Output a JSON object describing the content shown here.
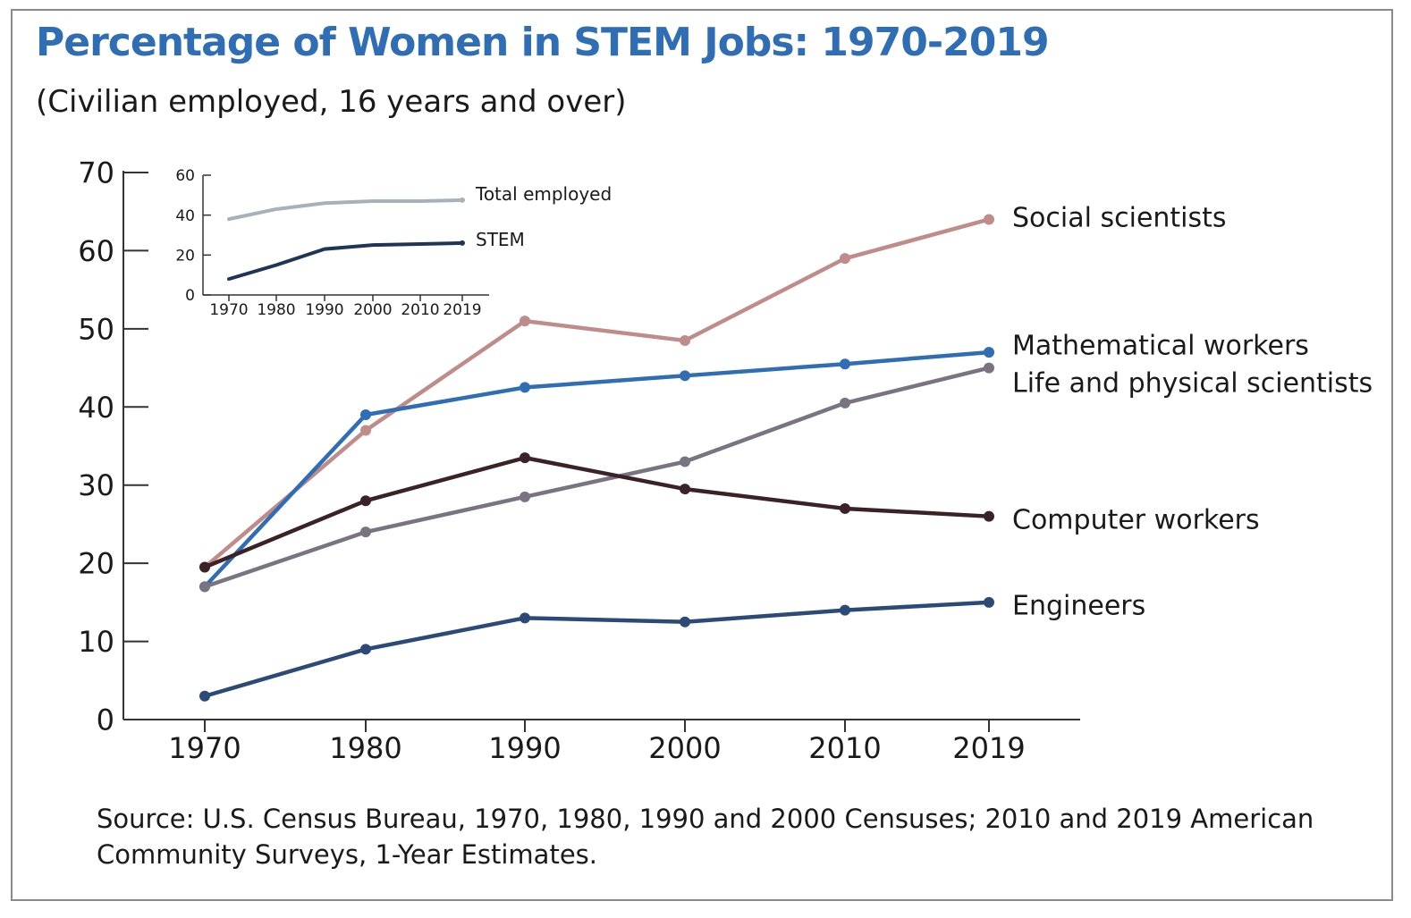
{
  "title": "Percentage of Women in STEM Jobs: 1970-2019",
  "subtitle": "(Civilian employed, 16 years and over)",
  "source": "Source: U.S. Census Bureau, 1970, 1980, 1990 and 2000 Censuses; 2010 and 2019 American Community Surveys, 1-Year Estimates.",
  "chart_data": [
    {
      "type": "line",
      "title": "Percentage of Women in STEM Jobs: 1970-2019",
      "subtitle": "(Civilian employed, 16 years and over)",
      "x": [
        "1970",
        "1980",
        "1990",
        "2000",
        "2010",
        "2019"
      ],
      "x_positions": [
        1970,
        1980,
        1990,
        2000,
        2010,
        2019
      ],
      "ylim": [
        0,
        70
      ],
      "yticks": [
        0,
        10,
        20,
        30,
        40,
        50,
        60,
        70
      ],
      "grid": false,
      "legend": "labels at line ends (right)",
      "series": [
        {
          "name": "Social scientists",
          "color": "#c08c8a",
          "values": [
            19.5,
            37,
            51,
            48.5,
            59,
            64
          ]
        },
        {
          "name": "Mathematical workers",
          "color": "#2f6db5",
          "values": [
            17,
            39,
            42.5,
            44,
            45.5,
            47
          ]
        },
        {
          "name": "Life and physical scientists",
          "color": "#7a7482",
          "values": [
            17,
            24,
            28.5,
            33,
            40.5,
            45
          ]
        },
        {
          "name": "Computer workers",
          "color": "#3a2226",
          "values": [
            19.5,
            28,
            33.5,
            29.5,
            27,
            26
          ]
        },
        {
          "name": "Engineers",
          "color": "#2b4a78",
          "values": [
            3,
            9,
            13,
            12.5,
            14,
            15
          ]
        }
      ]
    },
    {
      "type": "line",
      "x": [
        "1970",
        "1980",
        "1990",
        "2000",
        "2010",
        "2019"
      ],
      "x_positions": [
        1970,
        1980,
        1990,
        2000,
        2010,
        2019
      ],
      "ylim": [
        0,
        60
      ],
      "yticks": [
        0,
        20,
        40,
        60
      ],
      "grid": false,
      "legend": "labels at line ends (right)",
      "series": [
        {
          "name": "Total employed",
          "color": "#a8b0ba",
          "values": [
            38,
            43,
            46,
            47,
            47,
            47.5
          ]
        },
        {
          "name": "STEM",
          "color": "#1f3558",
          "values": [
            8,
            15,
            23,
            25,
            25.5,
            26
          ]
        }
      ]
    }
  ]
}
